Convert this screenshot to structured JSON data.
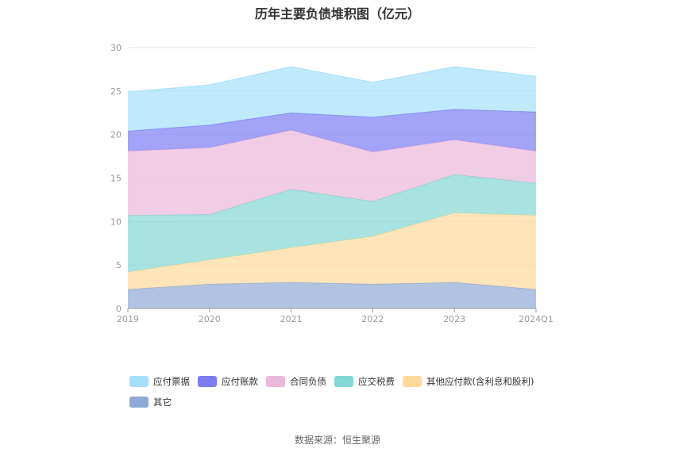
{
  "chart_data": {
    "type": "area",
    "stacked": true,
    "title": "历年主要负债堆积图（亿元）",
    "categories": [
      "2019",
      "2020",
      "2021",
      "2022",
      "2023",
      "2024Q1"
    ],
    "ylim": [
      0,
      30
    ],
    "yticks": [
      0,
      5,
      10,
      15,
      20,
      25,
      30
    ],
    "grid": true,
    "legend_position": "bottom",
    "series": [
      {
        "name": "其它",
        "color": "#8fa9d6",
        "values": [
          2.2,
          2.8,
          3.0,
          2.8,
          3.0,
          2.2
        ]
      },
      {
        "name": "其他应付款(含利息和股利)",
        "color": "#fdd99b",
        "values": [
          2.0,
          2.8,
          4.0,
          5.5,
          8.0,
          8.5
        ]
      },
      {
        "name": "应交税费",
        "color": "#83d7d4",
        "values": [
          6.5,
          5.2,
          6.7,
          4.0,
          4.4,
          3.7
        ]
      },
      {
        "name": "合同负债",
        "color": "#eab8d8",
        "values": [
          7.4,
          7.7,
          6.8,
          5.7,
          4.0,
          3.7
        ]
      },
      {
        "name": "应付账款",
        "color": "#7c7cf3",
        "values": [
          2.3,
          2.6,
          2.0,
          4.0,
          3.5,
          4.5
        ]
      },
      {
        "name": "应付票据",
        "color": "#a5dff9",
        "values": [
          4.5,
          4.6,
          5.3,
          4.0,
          4.9,
          4.1
        ]
      }
    ]
  },
  "legend_order": [
    "应付票据",
    "应付账款",
    "合同负债",
    "应交税费",
    "其他应付款(含利息和股利)",
    "其它"
  ],
  "source_text": "数据来源：恒生聚源"
}
